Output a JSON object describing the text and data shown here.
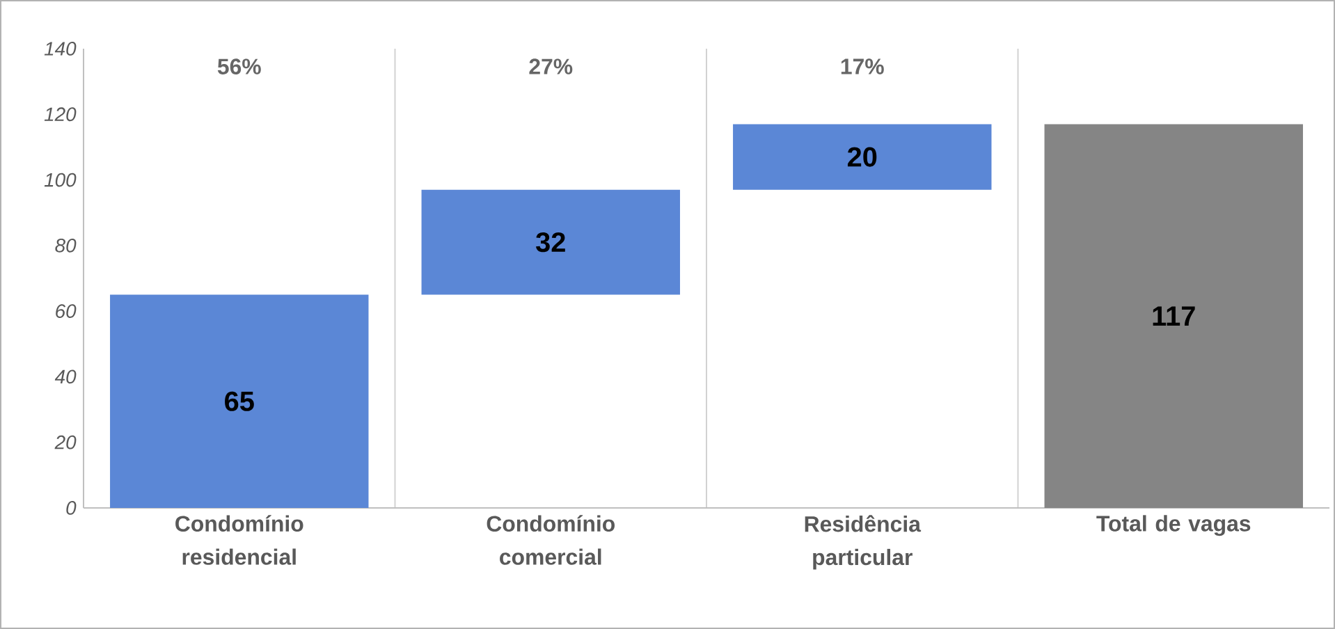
{
  "chart_data": {
    "type": "bar",
    "categories": [
      "Condomínio residencial",
      "Condomínio comercial",
      "Residência particular",
      "Total de vagas"
    ],
    "values": [
      65,
      32,
      20,
      117
    ],
    "base": [
      0,
      65,
      97,
      0
    ],
    "colors": [
      "#5b87d6",
      "#5b87d6",
      "#5b87d6",
      "#858585"
    ],
    "ylim": [
      0,
      140
    ],
    "yticks": [
      0,
      20,
      40,
      60,
      80,
      100,
      120,
      140
    ],
    "grid": "x",
    "data_labels": true,
    "annotations": [
      "56%",
      "27%",
      "17%"
    ]
  }
}
